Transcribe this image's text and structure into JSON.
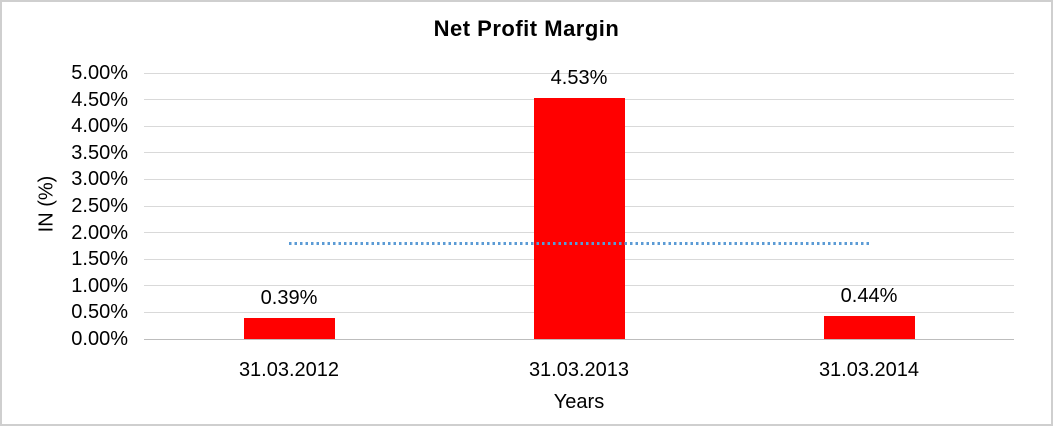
{
  "frame": {
    "background": "#ffffff",
    "border_color": "#cfcfcf"
  },
  "chart_data": {
    "type": "bar",
    "title": "Net Profit Margin",
    "categories": [
      "31.03.2012",
      "31.03.2013",
      "31.03.2014"
    ],
    "series": [
      {
        "name": "Net Profit Margin",
        "values": [
          0.39,
          4.53,
          0.44
        ]
      }
    ],
    "values": [
      0.39,
      4.53,
      0.44
    ],
    "value_labels": [
      "0.39%",
      "4.53%",
      "0.44%"
    ],
    "xlabel": "Years",
    "ylabel": "IN (%)",
    "ylim": [
      0,
      5
    ],
    "ytick_values": [
      0,
      0.5,
      1,
      1.5,
      2,
      2.5,
      3,
      3.5,
      4,
      4.5,
      5
    ],
    "ytick_labels": [
      "0.00%",
      "0.50%",
      "1.00%",
      "1.50%",
      "2.00%",
      "2.50%",
      "3.00%",
      "3.50%",
      "4.00%",
      "4.50%",
      "5.00%"
    ],
    "grid": true,
    "legend": "none",
    "colors": {
      "bar": "#ff0000",
      "gridline": "#d9d9d9",
      "axis_line": "#bdbdbd",
      "trendline": "#5b9bd5",
      "text": "#000000"
    },
    "trendline": {
      "style": "dotted",
      "value": 1.79,
      "from_category": "31.03.2012",
      "to_category": "31.03.2014"
    }
  }
}
